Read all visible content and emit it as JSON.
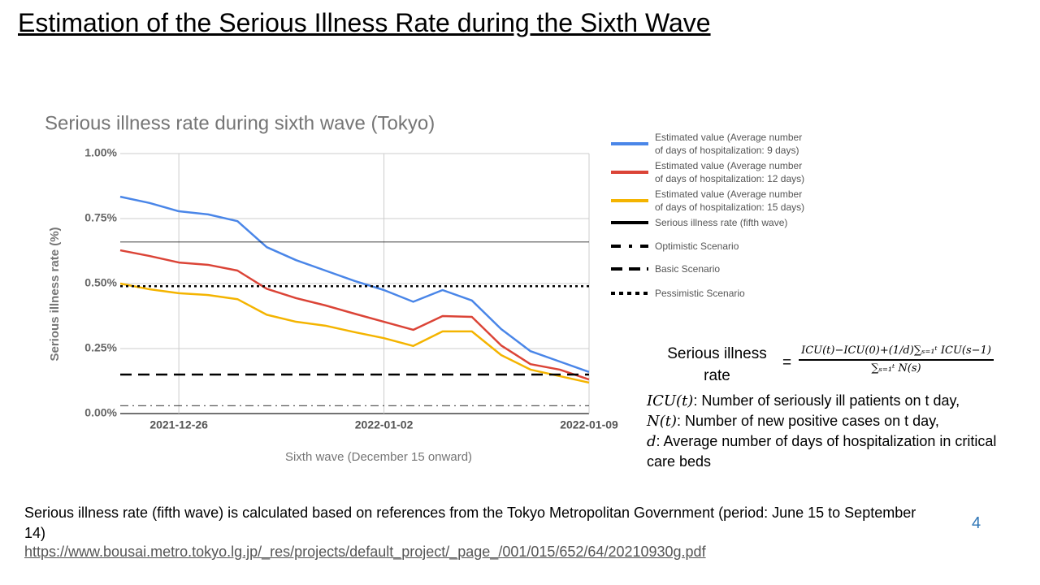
{
  "slide": {
    "title": "Estimation of the Serious Illness Rate during the Sixth Wave",
    "formula": {
      "label": "Serious illness\nrate",
      "equals": "=",
      "numerator": "ICU(t)−ICU(0)+(1/d)∑ₛ₌₁ᵗ ICU(s−1)",
      "denominator": "∑ₛ₌₁ᵗ N(s)"
    },
    "definitions": [
      {
        "term": "ICU(t)",
        "text": ": Number of seriously ill patients on t day,"
      },
      {
        "term": "N(t)",
        "text": ": Number of new positive cases on t day,"
      },
      {
        "term": "d",
        "text": ": Average number of days of hospitalization in critical care beds"
      }
    ],
    "footnote": "Serious illness rate (fifth wave) is calculated based on references from the Tokyo Metropolitan Government (period: June 15 to September 14)",
    "link": "https://www.bousai.metro.tokyo.lg.jp/_res/projects/default_project/_page_/001/015/652/64/20210930g.pdf",
    "page_number": "4"
  },
  "chart_data": {
    "type": "line",
    "title": "Serious illness rate during sixth wave (Tokyo)",
    "x_label": "Sixth wave (December 15 onward)",
    "y_label": "Serious illness rate (%)",
    "x": [
      "2021-12-24",
      "2021-12-25",
      "2021-12-26",
      "2021-12-27",
      "2021-12-28",
      "2021-12-29",
      "2021-12-30",
      "2021-12-31",
      "2022-01-01",
      "2022-01-02",
      "2022-01-03",
      "2022-01-04",
      "2022-01-05",
      "2022-01-06",
      "2022-01-07",
      "2022-01-08",
      "2022-01-09"
    ],
    "xlim": [
      "2021-12-24",
      "2022-01-09"
    ],
    "xticks": [
      "2021-12-26",
      "2022-01-02",
      "2022-01-09"
    ],
    "ylim": [
      0,
      1
    ],
    "yticks": [
      {
        "value": 0,
        "label": "0.00%"
      },
      {
        "value": 0.25,
        "label": "0.25%"
      },
      {
        "value": 0.5,
        "label": "0.50%"
      },
      {
        "value": 0.75,
        "label": "0.75%"
      },
      {
        "value": 1,
        "label": "1.00%"
      }
    ],
    "grid": true,
    "series": [
      {
        "name": "Estimated value (Average number\n of days of hospitalization: 9 days)",
        "color": "#4a86e8",
        "dash": "solid",
        "values": [
          0.834,
          0.81,
          0.778,
          0.766,
          0.74,
          0.64,
          0.59,
          0.55,
          0.51,
          0.475,
          0.43,
          0.475,
          0.435,
          0.325,
          0.24,
          0.2,
          0.16
        ]
      },
      {
        "name": "Estimated value (Average number\nof days of hospitalization: 12 days)",
        "color": "#db4437",
        "dash": "solid",
        "values": [
          0.628,
          0.606,
          0.581,
          0.572,
          0.55,
          0.48,
          0.444,
          0.416,
          0.384,
          0.353,
          0.322,
          0.375,
          0.372,
          0.262,
          0.19,
          0.169,
          0.131
        ]
      },
      {
        "name": "Estimated value (Average number\nof days of hospitalization: 15 days)",
        "color": "#f4b400",
        "dash": "solid",
        "values": [
          0.5,
          0.478,
          0.463,
          0.456,
          0.44,
          0.38,
          0.353,
          0.338,
          0.313,
          0.29,
          0.26,
          0.316,
          0.316,
          0.225,
          0.169,
          0.144,
          0.119
        ]
      },
      {
        "name": "Serious illness rate (fifth wave)",
        "color": "#000000",
        "dash": "solid",
        "value": 0.66
      },
      {
        "name": "Optimistic Scenario",
        "color": "#000000",
        "dash": "dashdot",
        "value": 0.03
      },
      {
        "name": "Basic Scenario",
        "color": "#000000",
        "dash": "dashed",
        "value": 0.15
      },
      {
        "name": "Pessimistic Scenario",
        "color": "#000000",
        "dash": "dotted",
        "value": 0.49
      }
    ]
  }
}
